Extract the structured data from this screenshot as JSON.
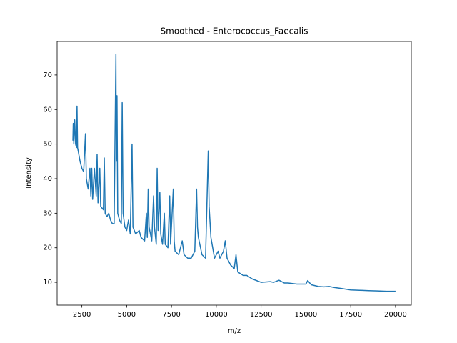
{
  "chart_data": {
    "type": "line",
    "title": "Smoothed - Enterococcus_Faecalis",
    "xlabel": "m/z",
    "ylabel": "Intensity",
    "color": "#1f77b4",
    "x": [
      2000,
      2020,
      2050,
      2100,
      2150,
      2200,
      2230,
      2260,
      2400,
      2500,
      2600,
      2700,
      2750,
      2850,
      2950,
      3000,
      3050,
      3100,
      3200,
      3300,
      3350,
      3400,
      3500,
      3550,
      3700,
      3750,
      3800,
      3900,
      4000,
      4100,
      4200,
      4300,
      4400,
      4420,
      4460,
      4500,
      4600,
      4700,
      4750,
      4800,
      4900,
      5000,
      5100,
      5200,
      5300,
      5350,
      5500,
      5700,
      5800,
      6000,
      6100,
      6150,
      6200,
      6250,
      6400,
      6500,
      6550,
      6650,
      6700,
      6750,
      6850,
      6900,
      7000,
      7100,
      7150,
      7300,
      7400,
      7450,
      7600,
      7650,
      7700,
      7900,
      8100,
      8200,
      8400,
      8600,
      8800,
      8900,
      8950,
      9000,
      9200,
      9400,
      9550,
      9600,
      9700,
      9900,
      10100,
      10200,
      10400,
      10500,
      10600,
      10800,
      11000,
      11100,
      11200,
      11500,
      11700,
      12000,
      12500,
      13000,
      13200,
      13500,
      13800,
      14000,
      14500,
      15000,
      15100,
      15300,
      15700,
      16000,
      16300,
      16600,
      17000,
      17500,
      18000,
      18500,
      19000,
      19500,
      20000
    ],
    "values": [
      51,
      56,
      50,
      57,
      50,
      49,
      61,
      49,
      45,
      43,
      42,
      53,
      40,
      37,
      43,
      35,
      43,
      34,
      43,
      35,
      47,
      33,
      43,
      32,
      31,
      46,
      30,
      29,
      30,
      28,
      27,
      27,
      76,
      45,
      64,
      30,
      28,
      27,
      62,
      30,
      26,
      25,
      28,
      24,
      50,
      26,
      24,
      25,
      23,
      22,
      30,
      23,
      37,
      26,
      22,
      35,
      26,
      21,
      43,
      25,
      36,
      24,
      21,
      30,
      21,
      20,
      35,
      21,
      37,
      22,
      19,
      18,
      22,
      18,
      17,
      17,
      19,
      37,
      26,
      23,
      18,
      17,
      48,
      32,
      23,
      17,
      19,
      17,
      19,
      22,
      17,
      15,
      14,
      18,
      13,
      12,
      12,
      11,
      10,
      10.2,
      10,
      10.6,
      9.8,
      9.8,
      9.5,
      9.5,
      10.5,
      9.3,
      8.8,
      8.7,
      8.8,
      8.5,
      8.2,
      7.8,
      7.7,
      7.6,
      7.5,
      7.4,
      7.4
    ],
    "xlim": [
      1120,
      20880
    ],
    "ylim": [
      3.4,
      79.7
    ],
    "xticks": [
      2500,
      5000,
      7500,
      10000,
      12500,
      15000,
      17500,
      20000
    ],
    "yticks": [
      10,
      20,
      30,
      40,
      50,
      60,
      70
    ]
  }
}
